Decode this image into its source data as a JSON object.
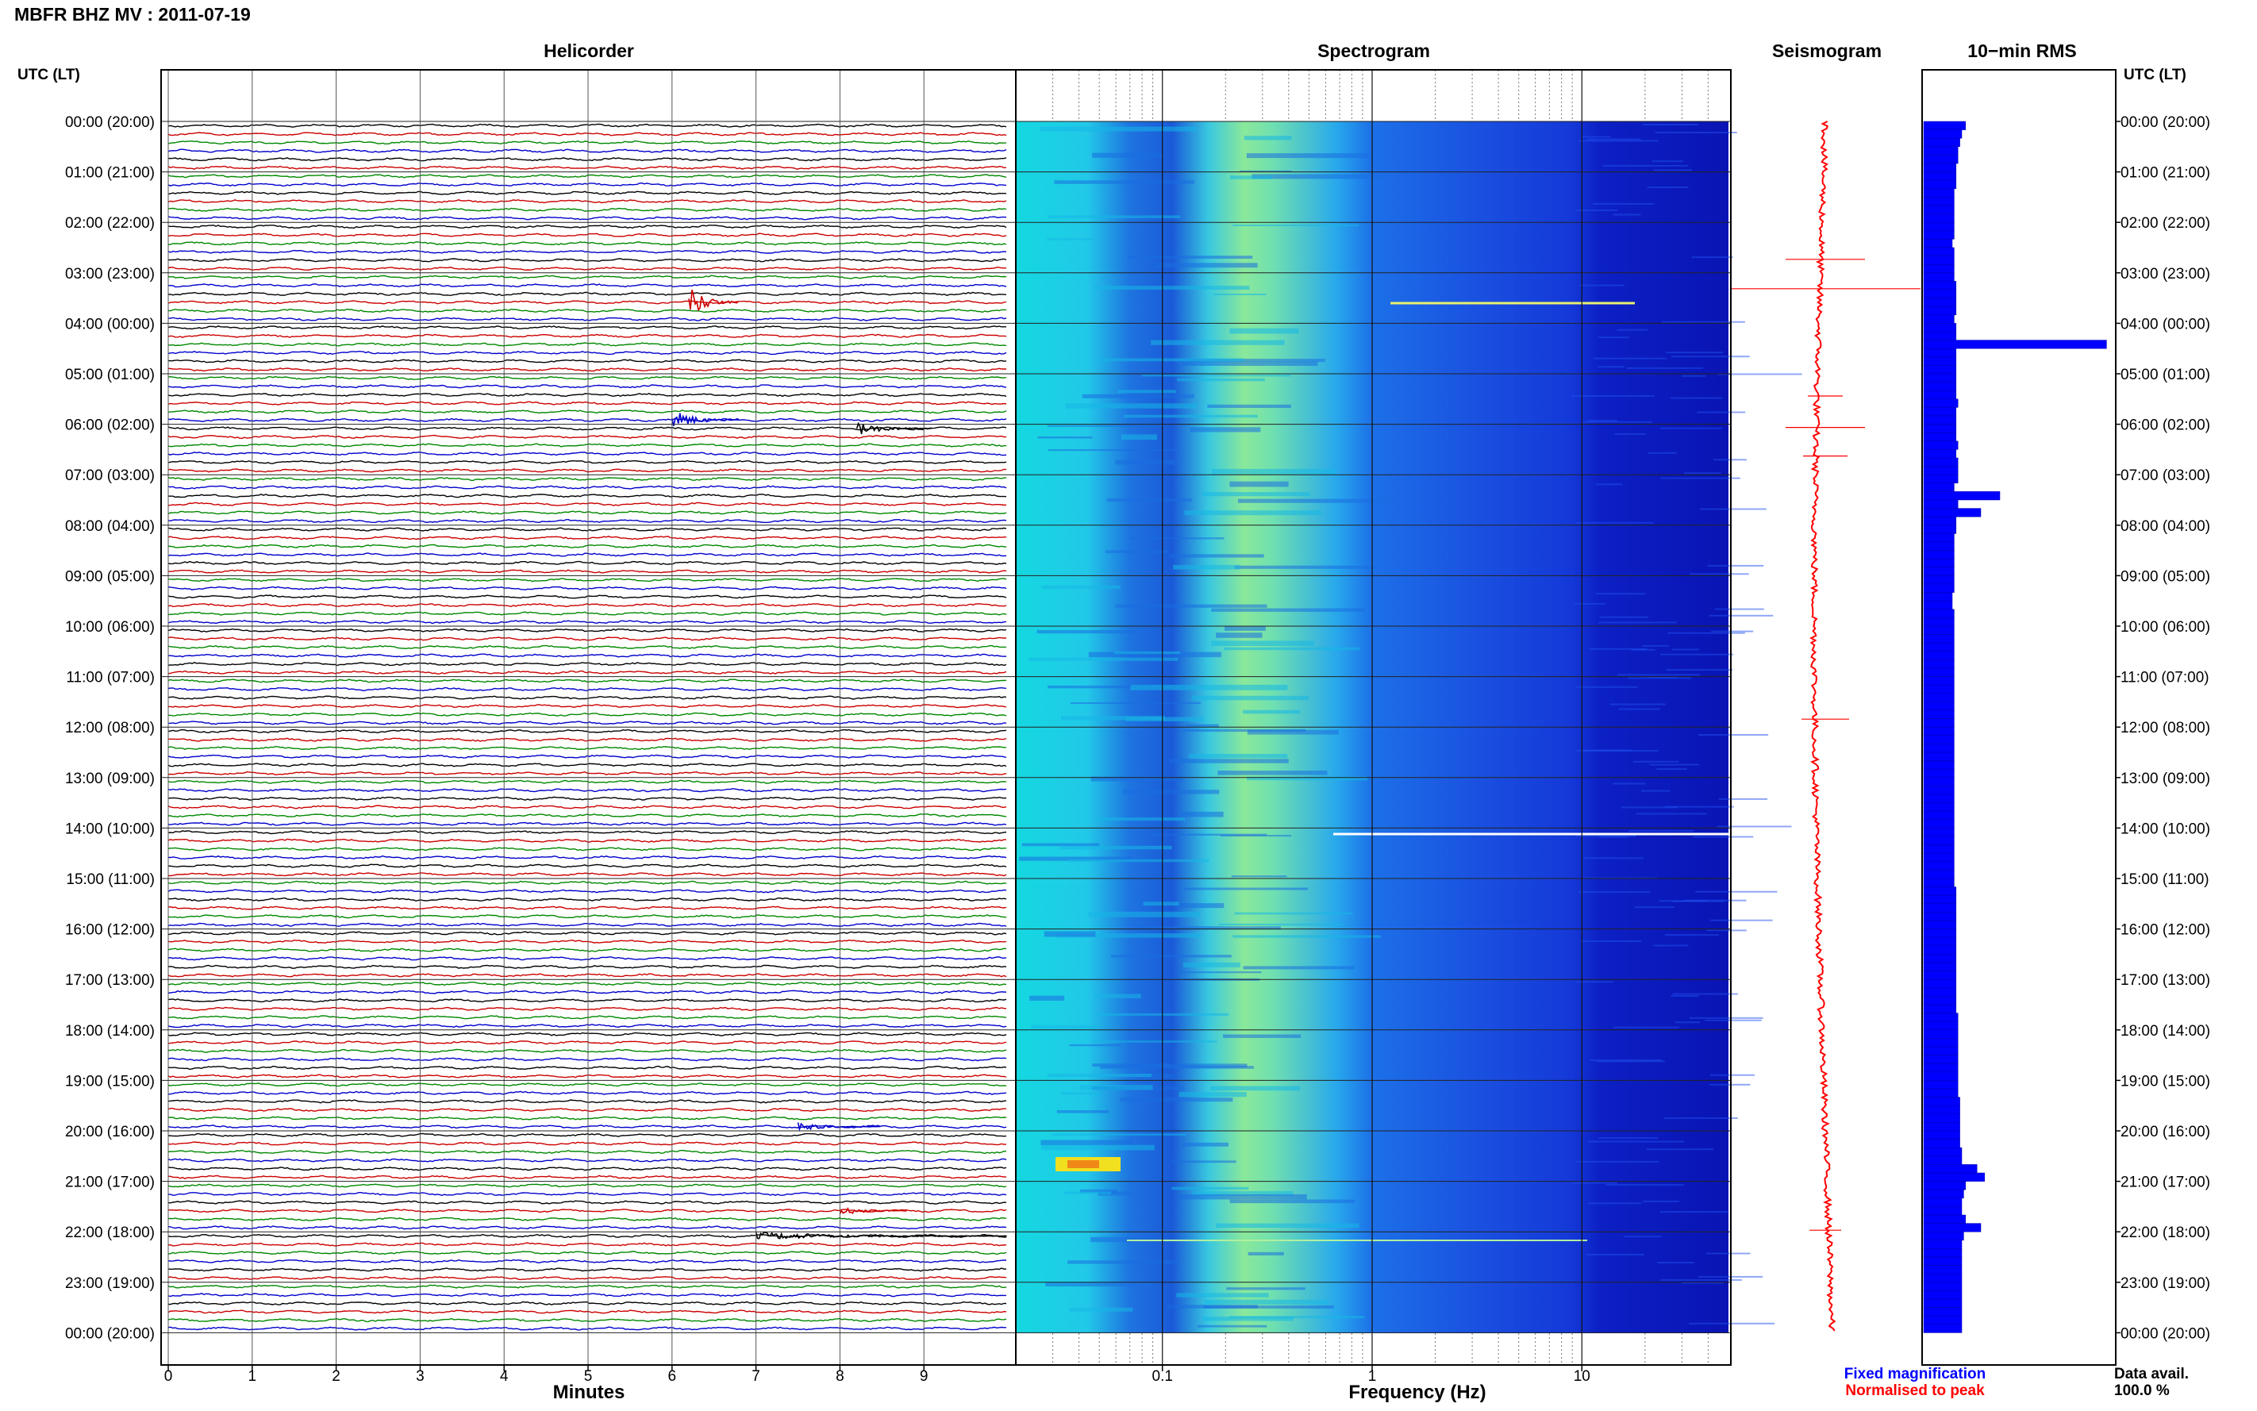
{
  "header": {
    "station_title": "MBFR BHZ MV : 2011-07-19"
  },
  "panels": {
    "helicorder": "Helicorder",
    "spectrogram": "Spectrogram",
    "seismogram": "Seismogram",
    "rms": "10−min RMS"
  },
  "axis_labels": {
    "left_header": "UTC (LT)",
    "right_header": "UTC (LT)",
    "minutes": "Minutes",
    "frequency": "Frequency (Hz)"
  },
  "legend": {
    "fixed": "Fixed magnification",
    "normalised": "Normalised to peak",
    "fixed_color": "#0000ff",
    "normalised_color": "#ff0000"
  },
  "availability": {
    "label": "Data avail.",
    "value": "100.0 %"
  },
  "colors": {
    "trace_cycle": [
      "#000000",
      "#cc0000",
      "#008800",
      "#0000cc"
    ],
    "seismogram": "#ff0000",
    "rms_bars": "#0000ff"
  },
  "chart_data": {
    "type": "helicorder",
    "station": "MBFR",
    "channel": "BHZ",
    "network": "MV",
    "date": "2011-07-19",
    "hour_labels": [
      "00:00 (20:00)",
      "01:00 (21:00)",
      "02:00 (22:00)",
      "03:00 (23:00)",
      "04:00 (00:00)",
      "05:00 (01:00)",
      "06:00 (02:00)",
      "07:00 (03:00)",
      "08:00 (04:00)",
      "09:00 (05:00)",
      "10:00 (06:00)",
      "11:00 (07:00)",
      "12:00 (08:00)",
      "13:00 (09:00)",
      "14:00 (10:00)",
      "15:00 (11:00)",
      "16:00 (12:00)",
      "17:00 (13:00)",
      "18:00 (14:00)",
      "19:00 (15:00)",
      "20:00 (16:00)",
      "21:00 (17:00)",
      "22:00 (18:00)",
      "23:00 (19:00)",
      "00:00 (20:00)"
    ],
    "minutes_ticks": [
      "0",
      "1",
      "2",
      "3",
      "4",
      "5",
      "6",
      "7",
      "8",
      "9"
    ],
    "minutes_range": [
      0,
      10
    ],
    "frequency_ticks": [
      "0.1",
      "1",
      "10"
    ],
    "frequency_range_hz": [
      0.02,
      50
    ],
    "frequency_scale": "log",
    "rows_per_hour": 6,
    "events": [
      {
        "hour": 3,
        "row": 3,
        "minute": 6.2,
        "amplitude": 4.5,
        "duration_min": 0.6
      },
      {
        "hour": 5,
        "row": 5,
        "minute": 6.0,
        "amplitude": 2.5,
        "duration_min": 0.8
      },
      {
        "hour": 6,
        "row": 0,
        "minute": 8.2,
        "amplitude": 1.8,
        "duration_min": 0.9
      },
      {
        "hour": 21,
        "row": 3,
        "minute": 8.0,
        "amplitude": 1.2,
        "duration_min": 0.8
      },
      {
        "hour": 22,
        "row": 0,
        "minute": 7.0,
        "amplitude": 1.0,
        "duration_min": 3.0
      },
      {
        "hour": 19,
        "row": 5,
        "minute": 7.5,
        "amplitude": 1.0,
        "duration_min": 1.0
      }
    ],
    "rms_10min": [
      0.22,
      0.2,
      0.19,
      0.18,
      0.18,
      0.17,
      0.17,
      0.17,
      0.16,
      0.16,
      0.16,
      0.16,
      0.16,
      0.16,
      0.15,
      0.16,
      0.16,
      0.16,
      0.16,
      0.17,
      0.17,
      0.17,
      0.17,
      0.16,
      0.17,
      0.17,
      0.96,
      0.17,
      0.17,
      0.17,
      0.17,
      0.17,
      0.17,
      0.18,
      0.17,
      0.17,
      0.17,
      0.17,
      0.18,
      0.17,
      0.18,
      0.18,
      0.18,
      0.16,
      0.4,
      0.18,
      0.3,
      0.17,
      0.17,
      0.16,
      0.16,
      0.16,
      0.16,
      0.16,
      0.16,
      0.16,
      0.15,
      0.15,
      0.16,
      0.16,
      0.16,
      0.16,
      0.16,
      0.16,
      0.16,
      0.16,
      0.16,
      0.16,
      0.16,
      0.16,
      0.16,
      0.16,
      0.16,
      0.16,
      0.16,
      0.16,
      0.16,
      0.16,
      0.16,
      0.16,
      0.16,
      0.16,
      0.16,
      0.16,
      0.16,
      0.16,
      0.16,
      0.16,
      0.16,
      0.16,
      0.16,
      0.17,
      0.17,
      0.17,
      0.17,
      0.17,
      0.17,
      0.17,
      0.17,
      0.17,
      0.17,
      0.17,
      0.17,
      0.17,
      0.17,
      0.17,
      0.18,
      0.18,
      0.18,
      0.18,
      0.18,
      0.18,
      0.18,
      0.18,
      0.18,
      0.18,
      0.19,
      0.19,
      0.19,
      0.19,
      0.19,
      0.19,
      0.2,
      0.2,
      0.28,
      0.32,
      0.22,
      0.21,
      0.2,
      0.2,
      0.22,
      0.3,
      0.21,
      0.2,
      0.2,
      0.2,
      0.2,
      0.2,
      0.2,
      0.2,
      0.2,
      0.2,
      0.2,
      0.2
    ],
    "rms_max_scale": 1.0
  }
}
